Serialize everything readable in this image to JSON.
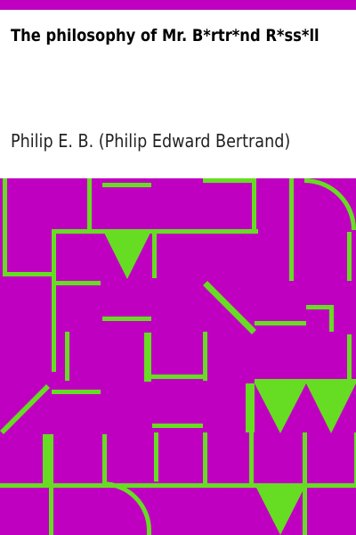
{
  "cover": {
    "title": "The philosophy of Mr. B*rtr*nd R*ss*ll",
    "author": "Philip E. B. (Philip Edward Bertrand)"
  },
  "colors": {
    "background": "#ffffff",
    "accent": "#c000c0",
    "pattern_line": "#66dd22",
    "title_text": "#000000"
  }
}
